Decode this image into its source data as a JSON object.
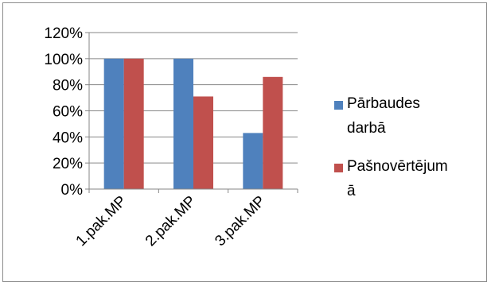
{
  "chart_data": {
    "type": "bar",
    "title": "",
    "xlabel": "",
    "ylabel": "",
    "categories": [
      "1.pak.MP",
      "2.pak.MP",
      "3.pak.MP"
    ],
    "series": [
      {
        "name": "Pārbaudes darbā",
        "values": [
          100,
          100,
          43
        ],
        "color": "#4f81bd"
      },
      {
        "name": "Pašnovērtējumā",
        "values": [
          100,
          71,
          86
        ],
        "color": "#c0504d"
      }
    ],
    "ylim": [
      0,
      120
    ],
    "yticks": [
      "0%",
      "20%",
      "40%",
      "60%",
      "80%",
      "100%",
      "120%"
    ],
    "grid": true,
    "legend": "right",
    "legend_lines": [
      [
        "Pārbaudes",
        "darbā"
      ],
      [
        "Pašnovērtējum",
        "ā"
      ]
    ]
  }
}
